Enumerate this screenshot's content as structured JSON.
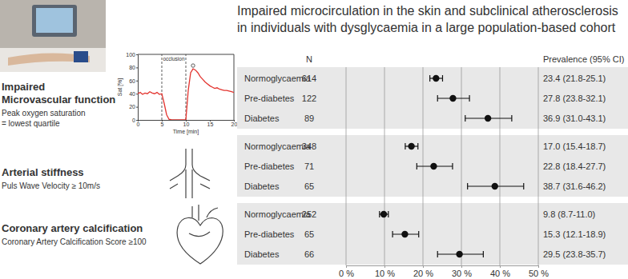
{
  "chart_data": [
    {
      "type": "line",
      "x_label": "Time [min]",
      "y_label": "Sat [%]",
      "x": [
        0,
        0.5,
        1,
        1.5,
        2,
        2.5,
        3,
        3.5,
        4,
        4.5,
        5,
        5.5,
        6,
        6.5,
        7,
        7.5,
        8,
        8.5,
        9,
        9.5,
        10,
        10.5,
        11,
        11.5,
        12,
        12.5,
        13,
        13.5,
        14,
        14.5,
        15,
        15.5,
        16,
        16.5,
        17,
        17.5,
        18,
        18.5,
        19,
        19.5,
        20
      ],
      "values": [
        40,
        42,
        39,
        41,
        40,
        43,
        41,
        40,
        42,
        39,
        40,
        25,
        8,
        1,
        0,
        0,
        0,
        0,
        0,
        0,
        0,
        45,
        72,
        78,
        76,
        72,
        66,
        62,
        58,
        55,
        52,
        50,
        48,
        49,
        47,
        46,
        45,
        45,
        44,
        43,
        42
      ],
      "color": "#e3342f",
      "xlim": [
        0,
        20
      ],
      "ylim": [
        0,
        100
      ],
      "xticks": [
        0,
        5,
        10,
        15,
        20
      ],
      "yticks": [
        0,
        20,
        40,
        60,
        80,
        100
      ],
      "grid": false,
      "occlusion": {
        "label": "occlusion",
        "x": [
          5,
          10
        ]
      },
      "peak": {
        "x": 11.5,
        "y": 78
      }
    },
    {
      "type": "dot",
      "title_lines": [
        "Impaired microcirculation in the skin and subclinical atherosclerosis",
        "in individuals with dysglycaemia in a large population-based cohort"
      ],
      "n_header": "N",
      "label_header": "Prevalence (95% CI)",
      "xlim": [
        0,
        50
      ],
      "xticks": [
        {
          "value": 0,
          "label": "0 %"
        },
        {
          "value": 10,
          "label": "10 %"
        },
        {
          "value": 20,
          "label": "20 %"
        },
        {
          "value": 30,
          "label": "30 %"
        },
        {
          "value": 40,
          "label": "40 %"
        },
        {
          "value": 50,
          "label": "50 %"
        }
      ],
      "grid": true,
      "color": "#111111",
      "groups": [
        {
          "title_lines": [
            "Impaired",
            "Microvascular function"
          ],
          "subtitle_lines": [
            "Peak oxygen saturation",
            "= lowest quartile"
          ],
          "categories": [
            "Normoglycaemia",
            "Pre-diabetes",
            "Diabetes"
          ],
          "n": [
            614,
            122,
            89
          ],
          "values": [
            23.4,
            27.8,
            36.9
          ],
          "ci_low": [
            21.8,
            23.8,
            31.0
          ],
          "ci_high": [
            25.1,
            32.1,
            43.1
          ],
          "value_labels": [
            "23.4 (21.8-25.1)",
            "27.8 (23.8-32.1)",
            "36.9 (31.0-43.1)"
          ]
        },
        {
          "title_lines": [
            "Arterial stiffness"
          ],
          "subtitle_lines": [
            "Puls Wave Velocity ≥ 10m/s"
          ],
          "categories": [
            "Normoglycaemia",
            "Pre-diabetes",
            "Diabetes"
          ],
          "n": [
            348,
            71,
            65
          ],
          "values": [
            17.0,
            22.8,
            38.7
          ],
          "ci_low": [
            15.4,
            18.4,
            31.6
          ],
          "ci_high": [
            18.7,
            27.7,
            46.2
          ],
          "value_labels": [
            "17.0 (15.4-18.7)",
            "22.8 (18.4-27.7)",
            "38.7 (31.6-46.2)"
          ]
        },
        {
          "title_lines": [
            "Coronary artery calcification"
          ],
          "subtitle_lines": [
            "Coronary Artery Calcification Score ≥100"
          ],
          "categories": [
            "Normoglycaemia",
            "Pre-diabetes",
            "Diabetes"
          ],
          "n": [
            252,
            65,
            66
          ],
          "values": [
            9.8,
            15.3,
            29.5
          ],
          "ci_low": [
            8.7,
            12.1,
            23.8
          ],
          "ci_high": [
            11.0,
            18.9,
            35.7
          ],
          "value_labels": [
            "9.8 (8.7-11.0)",
            "15.3 (12.1-18.9)",
            "29.5 (23.8-35.7)"
          ]
        }
      ]
    }
  ]
}
